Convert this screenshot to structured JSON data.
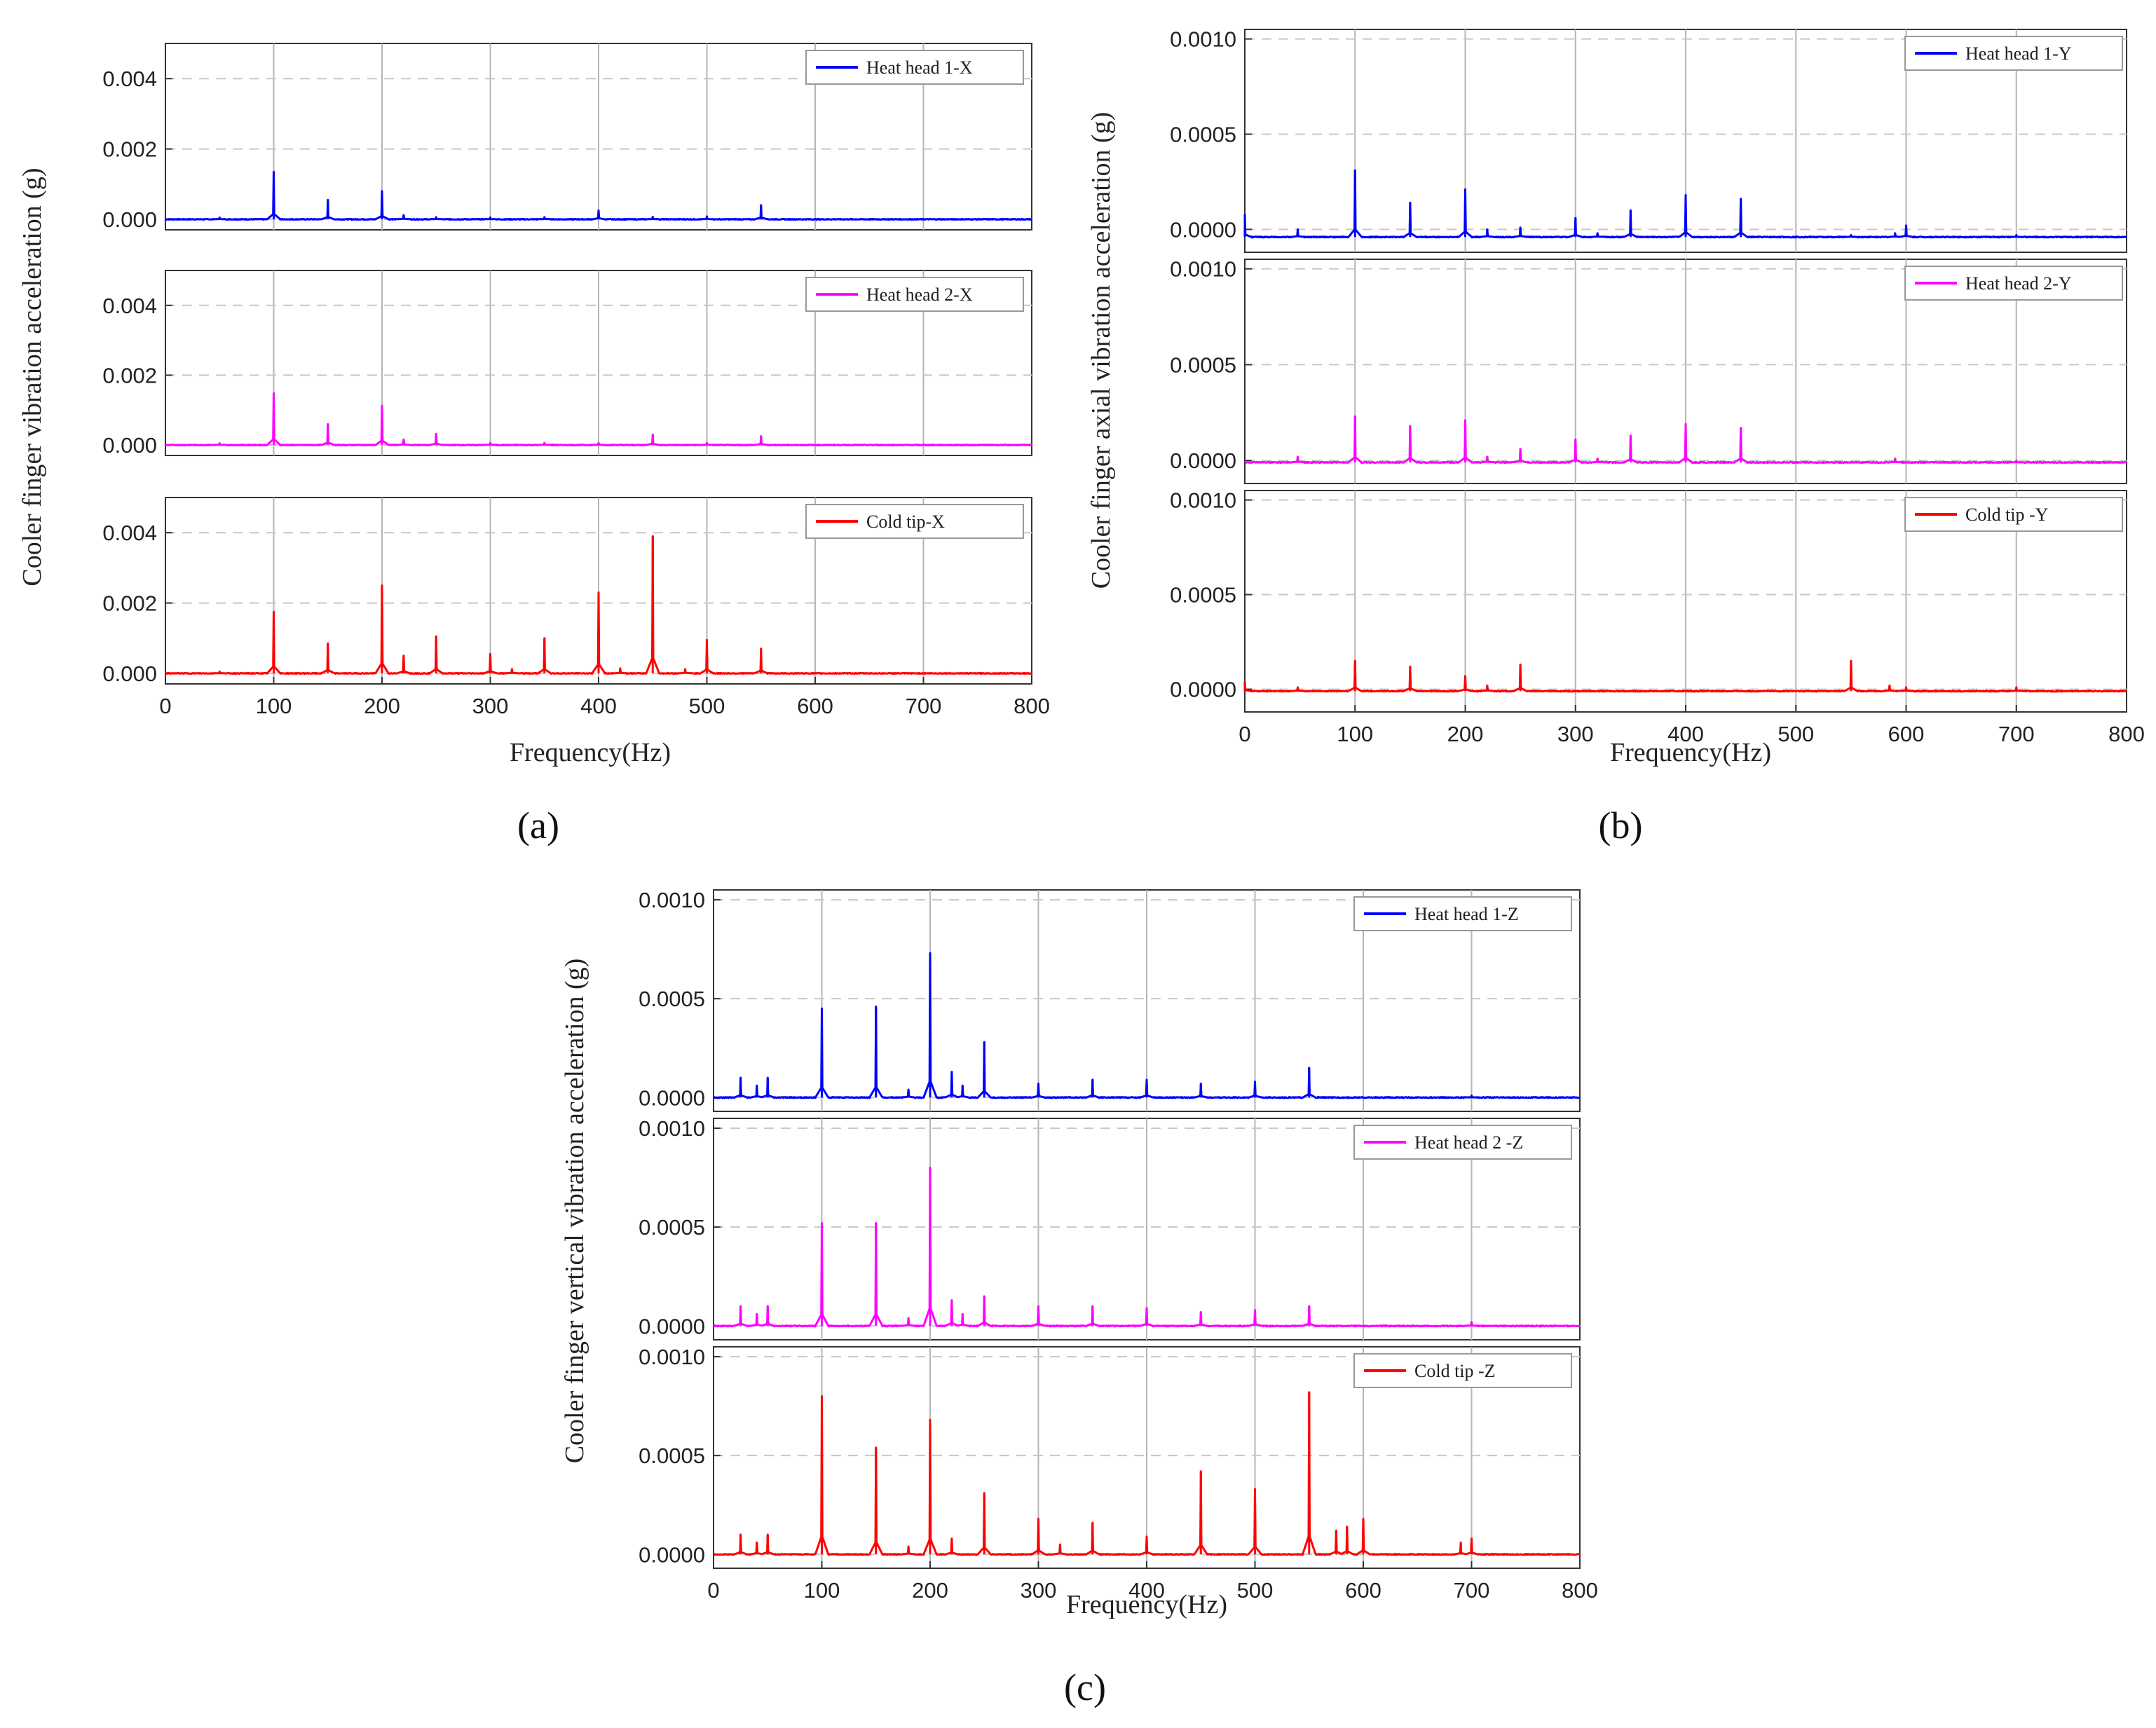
{
  "figure": {
    "panels": [
      {
        "id": "a",
        "label": "(a)",
        "ylabel": "Cooler finger vibration acceleration (g)",
        "xlabel": "Frequency(Hz)"
      },
      {
        "id": "b",
        "label": "(b)",
        "ylabel": "Cooler finger axial vibration acceleration (g)",
        "xlabel": "Frequency(Hz)"
      },
      {
        "id": "c",
        "label": "(c)",
        "ylabel": "Cooler finger vertical vibration acceleration (g)",
        "xlabel": "Frequency(Hz)"
      }
    ]
  },
  "chart_data": [
    {
      "type": "line",
      "panel": "a",
      "title": "",
      "xlabel": "Frequency(Hz)",
      "ylabel": "Cooler finger vibration acceleration (g)",
      "xlim": [
        0,
        800
      ],
      "xticks": [
        "0",
        "100",
        "200",
        "300",
        "400",
        "500",
        "600",
        "700",
        "800"
      ],
      "ylim": [
        -0.0003,
        0.005
      ],
      "yticks": [
        0.0,
        0.002,
        0.004
      ],
      "ytick_labels": [
        "0.000",
        "0.002",
        "0.004"
      ],
      "grid": true,
      "series": [
        {
          "name": "Heat head 1-X",
          "color": "#0000ff",
          "baseline": 0.0,
          "peaks": [
            [
              50,
              5e-05
            ],
            [
              100,
              0.00135
            ],
            [
              150,
              0.00055
            ],
            [
              200,
              0.0008
            ],
            [
              220,
              0.00012
            ],
            [
              250,
              6e-05
            ],
            [
              300,
              5e-05
            ],
            [
              350,
              6e-05
            ],
            [
              400,
              0.00025
            ],
            [
              450,
              7e-05
            ],
            [
              500,
              8e-05
            ],
            [
              550,
              0.0004
            ]
          ]
        },
        {
          "name": "Heat head 2-X",
          "color": "#ff00ff",
          "baseline": 0.0,
          "peaks": [
            [
              50,
              5e-05
            ],
            [
              100,
              0.00148
            ],
            [
              150,
              0.0006
            ],
            [
              200,
              0.00112
            ],
            [
              220,
              0.00016
            ],
            [
              250,
              0.00032
            ],
            [
              300,
              6e-05
            ],
            [
              350,
              6e-05
            ],
            [
              400,
              6e-05
            ],
            [
              450,
              0.0003
            ],
            [
              500,
              6e-05
            ],
            [
              550,
              0.00025
            ]
          ]
        },
        {
          "name": "Cold tip-X",
          "color": "#ff0000",
          "baseline": 0.0,
          "peaks": [
            [
              50,
              5e-05
            ],
            [
              100,
              0.00175
            ],
            [
              150,
              0.00085
            ],
            [
              200,
              0.0025
            ],
            [
              220,
              0.0005
            ],
            [
              250,
              0.00105
            ],
            [
              300,
              0.00055
            ],
            [
              320,
              0.00012
            ],
            [
              350,
              0.001
            ],
            [
              400,
              0.0023
            ],
            [
              420,
              0.00014
            ],
            [
              450,
              0.0039
            ],
            [
              480,
              0.00012
            ],
            [
              500,
              0.00095
            ],
            [
              550,
              0.0007
            ]
          ]
        }
      ]
    },
    {
      "type": "line",
      "panel": "b",
      "title": "",
      "xlabel": "Frequency(Hz)",
      "ylabel": "Cooler finger axial vibration acceleration (g)",
      "xlim": [
        0,
        800
      ],
      "xticks": [
        "0",
        "100",
        "200",
        "300",
        "400",
        "500",
        "600",
        "700",
        "800"
      ],
      "ylim": [
        -0.00012,
        0.00105
      ],
      "yticks": [
        0.0,
        0.0005,
        0.001
      ],
      "ytick_labels": [
        "0.0000",
        "0.0005",
        "0.0010"
      ],
      "grid": true,
      "series": [
        {
          "name": "Heat head 1-Y",
          "color": "#0000ff",
          "baseline": -4e-05,
          "peaks": [
            [
              0,
              0.00012
            ],
            [
              48,
              4e-05
            ],
            [
              100,
              0.00035
            ],
            [
              150,
              0.00018
            ],
            [
              200,
              0.00025
            ],
            [
              220,
              4e-05
            ],
            [
              250,
              5e-05
            ],
            [
              300,
              0.0001
            ],
            [
              320,
              2e-05
            ],
            [
              350,
              0.00014
            ],
            [
              400,
              0.00022
            ],
            [
              450,
              0.0002
            ],
            [
              550,
              1e-05
            ],
            [
              590,
              2e-05
            ],
            [
              600,
              6e-05
            ],
            [
              700,
              1e-05
            ]
          ]
        },
        {
          "name": "Heat head 2-Y",
          "color": "#ff00ff",
          "baseline": -1e-05,
          "peaks": [
            [
              48,
              3e-05
            ],
            [
              100,
              0.00024
            ],
            [
              150,
              0.00019
            ],
            [
              200,
              0.00022
            ],
            [
              220,
              3e-05
            ],
            [
              250,
              7e-05
            ],
            [
              300,
              0.00012
            ],
            [
              320,
              2e-05
            ],
            [
              350,
              0.00014
            ],
            [
              400,
              0.0002
            ],
            [
              450,
              0.00018
            ],
            [
              590,
              2e-05
            ],
            [
              700,
              1e-05
            ]
          ]
        },
        {
          "name": "Cold tip -Y",
          "color": "#ff0000",
          "baseline": -1e-05,
          "peaks": [
            [
              0,
              5e-05
            ],
            [
              48,
              2e-05
            ],
            [
              100,
              0.00016
            ],
            [
              150,
              0.00013
            ],
            [
              200,
              8e-05
            ],
            [
              220,
              3e-05
            ],
            [
              250,
              0.00014
            ],
            [
              550,
              0.00016
            ],
            [
              585,
              3e-05
            ],
            [
              600,
              2e-05
            ],
            [
              700,
              2e-05
            ]
          ]
        }
      ]
    },
    {
      "type": "line",
      "panel": "c",
      "title": "",
      "xlabel": "Frequency(Hz)",
      "ylabel": "Cooler finger vertical vibration acceleration (g)",
      "xlim": [
        0,
        800
      ],
      "xticks": [
        "0",
        "100",
        "200",
        "300",
        "400",
        "500",
        "600",
        "700",
        "800"
      ],
      "ylim": [
        -7e-05,
        0.00105
      ],
      "yticks": [
        0.0,
        0.0005,
        0.001
      ],
      "ytick_labels": [
        "0.0000",
        "0.0005",
        "0.0010"
      ],
      "grid": true,
      "series": [
        {
          "name": "Heat head 1-Z",
          "color": "#0000ff",
          "baseline": 0.0,
          "peaks": [
            [
              25,
              0.0001
            ],
            [
              40,
              6e-05
            ],
            [
              50,
              0.0001
            ],
            [
              100,
              0.00045
            ],
            [
              150,
              0.00046
            ],
            [
              180,
              4e-05
            ],
            [
              200,
              0.00073
            ],
            [
              220,
              0.00013
            ],
            [
              230,
              6e-05
            ],
            [
              250,
              0.00028
            ],
            [
              300,
              7e-05
            ],
            [
              350,
              9e-05
            ],
            [
              400,
              9e-05
            ],
            [
              450,
              7e-05
            ],
            [
              500,
              8e-05
            ],
            [
              550,
              0.00015
            ],
            [
              700,
              1e-05
            ]
          ]
        },
        {
          "name": "Heat head 2 -Z",
          "color": "#ff00ff",
          "baseline": 0.0,
          "peaks": [
            [
              25,
              0.0001
            ],
            [
              40,
              6e-05
            ],
            [
              50,
              0.0001
            ],
            [
              100,
              0.00052
            ],
            [
              150,
              0.00052
            ],
            [
              180,
              4e-05
            ],
            [
              200,
              0.0008
            ],
            [
              220,
              0.00013
            ],
            [
              230,
              6e-05
            ],
            [
              250,
              0.00015
            ],
            [
              300,
              0.0001
            ],
            [
              350,
              0.0001
            ],
            [
              400,
              9e-05
            ],
            [
              450,
              7e-05
            ],
            [
              500,
              8e-05
            ],
            [
              550,
              0.0001
            ],
            [
              700,
              2e-05
            ]
          ]
        },
        {
          "name": "Cold tip -Z",
          "color": "#ff0000",
          "baseline": 0.0,
          "peaks": [
            [
              25,
              0.0001
            ],
            [
              40,
              6e-05
            ],
            [
              50,
              0.0001
            ],
            [
              100,
              0.0008
            ],
            [
              150,
              0.00054
            ],
            [
              180,
              4e-05
            ],
            [
              200,
              0.00068
            ],
            [
              220,
              8e-05
            ],
            [
              250,
              0.00031
            ],
            [
              300,
              0.00018
            ],
            [
              320,
              5e-05
            ],
            [
              350,
              0.00016
            ],
            [
              400,
              9e-05
            ],
            [
              450,
              0.00042
            ],
            [
              500,
              0.00033
            ],
            [
              550,
              0.00082
            ],
            [
              575,
              0.00012
            ],
            [
              585,
              0.00014
            ],
            [
              600,
              0.00018
            ],
            [
              690,
              6e-05
            ],
            [
              700,
              8e-05
            ]
          ]
        }
      ]
    }
  ]
}
